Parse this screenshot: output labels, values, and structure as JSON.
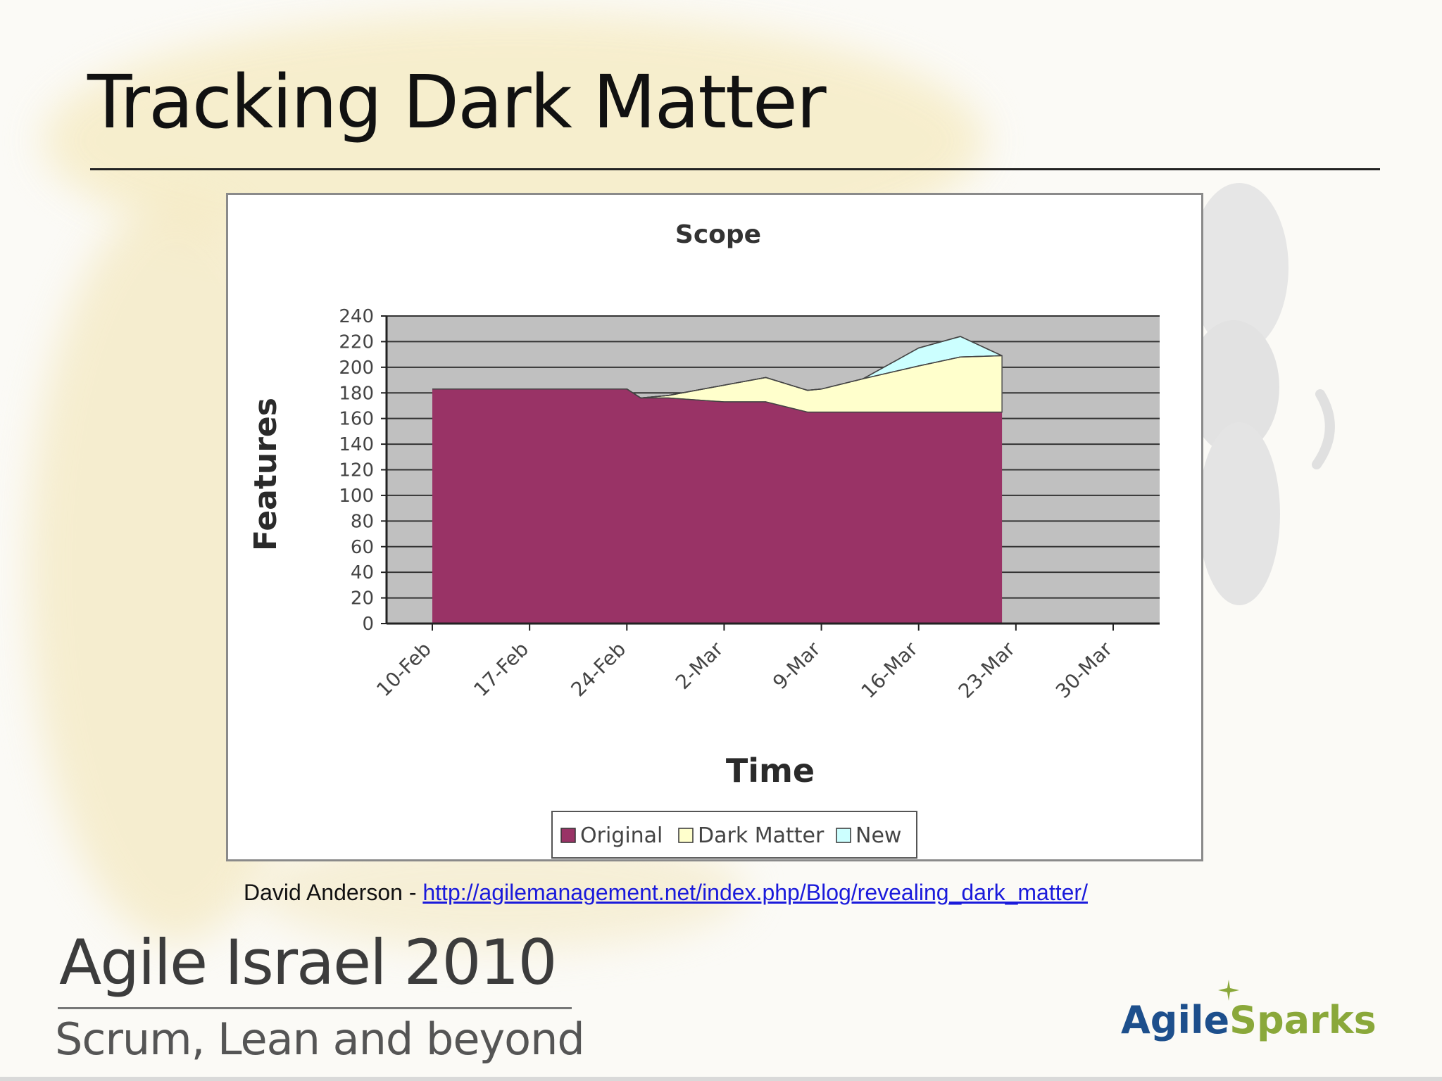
{
  "slide": {
    "title": "Tracking Dark Matter",
    "citation_prefix": "David Anderson - ",
    "citation_link": "http://agilemanagement.net/index.php/Blog/revealing_dark_matter/",
    "event_title": "Agile Israel 2010",
    "event_subtitle": "Scrum, Lean and beyond",
    "brand_part1": "Agile",
    "brand_part2": "Sparks"
  },
  "colors": {
    "original": "#993366",
    "dark_matter": "#ffffcc",
    "new": "#ccffff",
    "plot_background": "#c0c0c0",
    "brand_blue": "#1d4f8c",
    "brand_green": "#8aa83a"
  },
  "chart_data": {
    "type": "area",
    "stacked": true,
    "title": "Scope",
    "xlabel": "Time",
    "ylabel": "Features",
    "ylim": [
      0,
      240
    ],
    "yticks": [
      "0",
      "20",
      "40",
      "60",
      "80",
      "100",
      "120",
      "140",
      "160",
      "180",
      "200",
      "220",
      "240"
    ],
    "x_categories": [
      "10-Feb",
      "17-Feb",
      "24-Feb",
      "2-Mar",
      "9-Mar",
      "16-Mar",
      "23-Mar",
      "30-Mar"
    ],
    "x_values_days": [
      0,
      3,
      7,
      14,
      15,
      17,
      21,
      24,
      27,
      28,
      31,
      35,
      38,
      41
    ],
    "grid": true,
    "legend_position": "bottom",
    "series": [
      {
        "name": "Original",
        "values": [
          183,
          183,
          183,
          183,
          176,
          176,
          173,
          173,
          165,
          165,
          165,
          165,
          165,
          165
        ]
      },
      {
        "name": "Dark Matter",
        "values": [
          0,
          0,
          0,
          0,
          0,
          2,
          13,
          19,
          17,
          18,
          26,
          36,
          43,
          44
        ]
      },
      {
        "name": "New",
        "values": [
          0,
          0,
          0,
          0,
          0,
          0,
          0,
          0,
          0,
          0,
          0,
          14,
          16,
          0
        ]
      }
    ]
  }
}
